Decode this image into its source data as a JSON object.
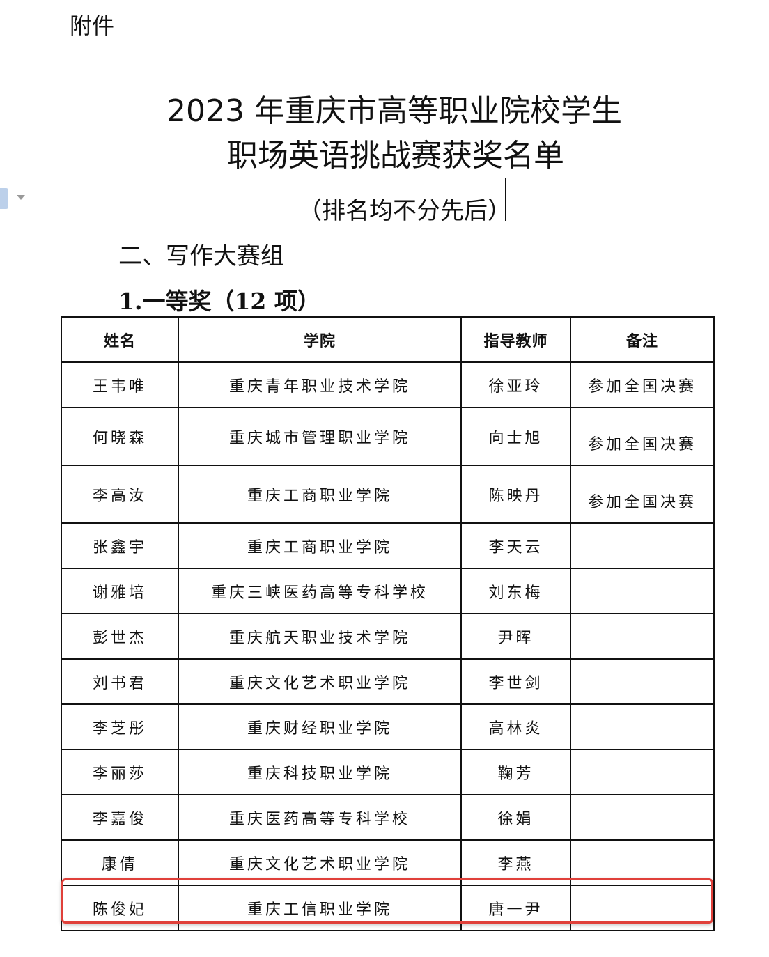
{
  "attachment_label": "附件",
  "title_line1": "2023 年重庆市高等职业院校学生",
  "title_line2": "职场英语挑战赛获奖名单",
  "subtitle": "（排名均不分先后）",
  "section": "二、写作大赛组",
  "prize": "1.一等奖（12 项）",
  "icons": {
    "side": "document-icon",
    "arrow": "dropdown-arrow-icon"
  },
  "highlight_color": "#e0403a",
  "table": {
    "headers": [
      "姓名",
      "学院",
      "指导教师",
      "备注"
    ],
    "rows": [
      [
        "王韦唯",
        "重庆青年职业技术学院",
        "徐亚玲",
        "参加全国决赛"
      ],
      [
        "何晓森",
        "重庆城市管理职业学院",
        "向士旭",
        "参加全国决赛"
      ],
      [
        "李高汝",
        "重庆工商职业学院",
        "陈映丹",
        "参加全国决赛"
      ],
      [
        "张鑫宇",
        "重庆工商职业学院",
        "李天云",
        ""
      ],
      [
        "谢雅培",
        "重庆三峡医药高等专科学校",
        "刘东梅",
        ""
      ],
      [
        "彭世杰",
        "重庆航天职业技术学院",
        "尹晖",
        ""
      ],
      [
        "刘书君",
        "重庆文化艺术职业学院",
        "李世剑",
        ""
      ],
      [
        "李芝彤",
        "重庆财经职业学院",
        "高林炎",
        ""
      ],
      [
        "李丽莎",
        "重庆科技职业学院",
        "鞠芳",
        ""
      ],
      [
        "李嘉俊",
        "重庆医药高等专科学校",
        "徐娟",
        ""
      ],
      [
        "康倩",
        "重庆文化艺术职业学院",
        "李燕",
        ""
      ],
      [
        "陈俊妃",
        "重庆工信职业学院",
        "唐一尹",
        ""
      ]
    ]
  }
}
